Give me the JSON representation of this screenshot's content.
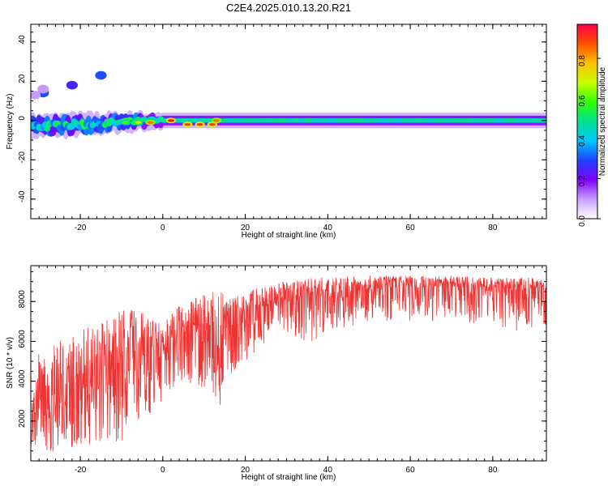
{
  "title": "C2E4.2025.010.13.20.R21",
  "colors": {
    "spectrogram_low": "#ffffff",
    "spectrogram_high": "#ff0044",
    "snr_line": "#ee3333",
    "frame": "#000000"
  },
  "chart_data": [
    {
      "type": "heatmap",
      "name": "spectrogram",
      "xlabel": "Height of straight line (km)",
      "ylabel": "Frequency (Hz)",
      "xlim": [
        -32,
        93
      ],
      "ylim": [
        -50,
        49
      ],
      "xticks": [
        -20,
        0,
        20,
        40,
        60,
        80
      ],
      "yticks": [
        -40,
        -20,
        0,
        20,
        40
      ],
      "colorbar": {
        "label": "Normalized spectral amplitude",
        "range": [
          0,
          0.97
        ],
        "ticks": [
          "0.0",
          "0.2",
          "0.4",
          "0.6",
          "0.8"
        ],
        "colormap": [
          "#ffffff",
          "#c8a0ff",
          "#8000ff",
          "#2040ff",
          "#00c8ff",
          "#00e090",
          "#30ff00",
          "#c8ff00",
          "#ffc000",
          "#ff5000",
          "#ff0044"
        ]
      },
      "band": {
        "center_hz": [
          [
            -32,
            -3
          ],
          [
            -20,
            -2
          ],
          [
            -10,
            -1
          ],
          [
            0,
            0
          ],
          [
            20,
            0
          ],
          [
            50,
            0
          ],
          [
            80,
            0
          ],
          [
            92,
            0
          ]
        ],
        "half_width_hz": [
          [
            -32,
            4
          ],
          [
            -20,
            4
          ],
          [
            -10,
            3
          ],
          [
            0,
            2.5
          ],
          [
            20,
            2.5
          ],
          [
            50,
            2.5
          ],
          [
            80,
            2.5
          ],
          [
            92,
            2.5
          ]
        ]
      },
      "bright_spots": [
        {
          "x": -3,
          "y": -1,
          "amp": 0.85
        },
        {
          "x": 2,
          "y": 0,
          "amp": 0.95
        },
        {
          "x": 6,
          "y": -2,
          "amp": 0.9
        },
        {
          "x": 9,
          "y": -2,
          "amp": 0.92
        },
        {
          "x": 12,
          "y": -2,
          "amp": 0.9
        },
        {
          "x": 13,
          "y": 0,
          "amp": 0.85
        },
        {
          "x": -6,
          "y": -1,
          "amp": 0.7
        },
        {
          "x": -9,
          "y": -1,
          "amp": 0.6
        }
      ],
      "outliers": [
        {
          "x": -29,
          "y": 14,
          "amp": 0.3
        },
        {
          "x": -29,
          "y": 16,
          "amp": 0.1
        },
        {
          "x": -22,
          "y": 18,
          "amp": 0.25
        },
        {
          "x": -15,
          "y": 23,
          "amp": 0.3
        },
        {
          "x": -31,
          "y": 13,
          "amp": 0.1
        }
      ]
    },
    {
      "type": "line",
      "name": "snr",
      "xlabel": "Height of straight line (km)",
      "ylabel": "SNR (10 * v/v)",
      "xlim": [
        -32,
        93
      ],
      "ylim": [
        0,
        9800
      ],
      "xticks": [
        -20,
        0,
        20,
        40,
        60,
        80
      ],
      "yticks": [
        2000,
        4000,
        6000,
        8000
      ],
      "envelope": {
        "x": [
          -32,
          -30,
          -25,
          -20,
          -15,
          -10,
          -5,
          0,
          5,
          10,
          14,
          15,
          20,
          25,
          30,
          35,
          40,
          50,
          60,
          70,
          80,
          85,
          90,
          93
        ],
        "high": [
          4500,
          5400,
          6000,
          6600,
          7200,
          7700,
          7500,
          7000,
          8000,
          8400,
          9000,
          8000,
          8500,
          8800,
          9100,
          9200,
          9200,
          9300,
          9300,
          9300,
          9200,
          9200,
          9200,
          9200
        ],
        "mid": [
          2000,
          2300,
          2400,
          3000,
          3700,
          4300,
          4500,
          5500,
          6500,
          6000,
          5000,
          6500,
          7400,
          7600,
          8000,
          8300,
          8400,
          8600,
          8700,
          8700,
          8700,
          8600,
          8600,
          8600
        ],
        "low": [
          300,
          300,
          500,
          800,
          900,
          1000,
          2000,
          3000,
          4000,
          3500,
          2600,
          4000,
          5000,
          6000,
          6500,
          5500,
          6500,
          7000,
          7000,
          7000,
          6800,
          6500,
          6500,
          6500
        ]
      }
    }
  ]
}
